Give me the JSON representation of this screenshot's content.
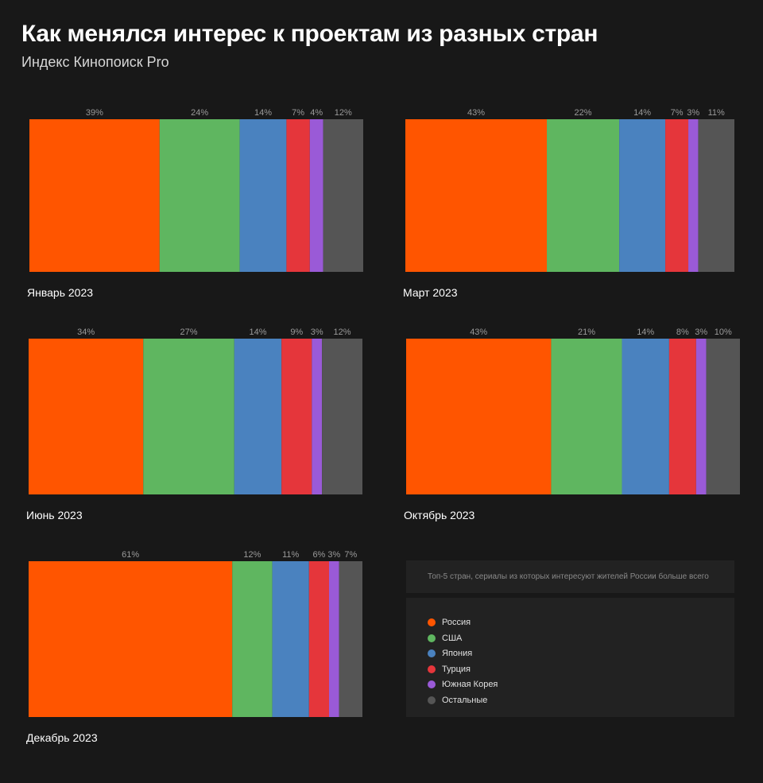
{
  "title": "Как менялся интерес к проектам из разных стран",
  "subtitle": "Индекс Кинопоиск Pro",
  "note": "Топ-5 стран, сериалы из которых интересуют жителей России больше всего",
  "chart_data": {
    "type": "bar",
    "stacked": "100%",
    "orientation": "horizontal",
    "series_names": [
      "Россия",
      "США",
      "Япония",
      "Турция",
      "Южная Корея",
      "Остальные"
    ],
    "colors": [
      "#ff5500",
      "#5fb660",
      "#4a82bf",
      "#e5363b",
      "#9a5ad7",
      "#555555"
    ],
    "panels": [
      {
        "period": "Январь 2023",
        "labels": [
          "39%",
          "24%",
          "14%",
          "7%",
          "4%",
          "12%"
        ],
        "values": [
          39,
          24,
          14,
          7,
          4,
          12
        ]
      },
      {
        "period": "Март 2023",
        "labels": [
          "43%",
          "22%",
          "14%",
          "7%",
          "3%",
          "11%"
        ],
        "values": [
          43,
          22,
          14,
          7,
          3,
          11
        ]
      },
      {
        "period": "Июнь 2023",
        "labels": [
          "34%",
          "27%",
          "14%",
          "9%",
          "3%",
          "12%"
        ],
        "values": [
          34,
          27,
          14,
          9,
          3,
          12
        ]
      },
      {
        "period": "Октябрь 2023",
        "labels": [
          "43%",
          "21%",
          "14%",
          "8%",
          "3%",
          "10%"
        ],
        "values": [
          43,
          21,
          14,
          8,
          3,
          10
        ]
      },
      {
        "period": "Декабрь 2023",
        "labels": [
          "61%",
          "12%",
          "11%",
          "6%",
          "3%",
          "7%"
        ],
        "values": [
          61,
          12,
          11,
          6,
          3,
          7
        ]
      }
    ],
    "legend": [
      {
        "label": "Россия",
        "color": "#ff5500"
      },
      {
        "label": "США",
        "color": "#5fb660"
      },
      {
        "label": "Япония",
        "color": "#4a82bf"
      },
      {
        "label": "Турция",
        "color": "#e5363b"
      },
      {
        "label": "Южная Корея",
        "color": "#9a5ad7"
      },
      {
        "label": "Остальные",
        "color": "#555555"
      }
    ]
  }
}
